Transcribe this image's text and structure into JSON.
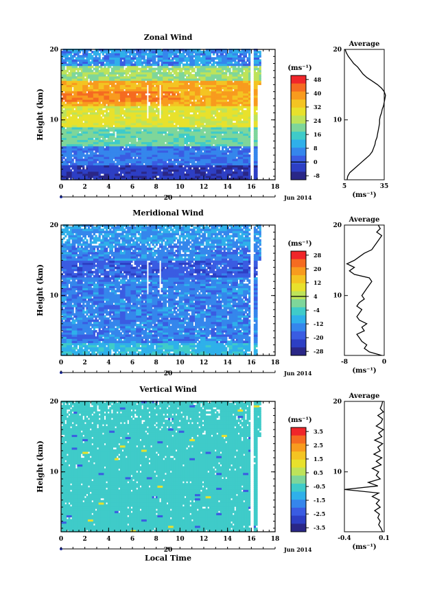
{
  "page": {
    "time_axis_label": "Local Time",
    "date_day": "20",
    "date_month": "Jun 2014"
  },
  "chart_data": [
    {
      "type": "heatmap",
      "title": "Zonal Wind",
      "ylabel": "Height (km)",
      "xlim": [
        0,
        18
      ],
      "ylim": [
        1.5,
        20
      ],
      "x_ticks": [
        "0",
        "2",
        "4",
        "6",
        "8",
        "10",
        "12",
        "14",
        "16",
        "18"
      ],
      "y_ticks": [
        "10",
        "20"
      ],
      "colorbar": {
        "unit": "(ms⁻¹)",
        "labels": [
          "48",
          "40",
          "32",
          "24",
          "16",
          "8",
          "0",
          "-8"
        ],
        "colors": [
          "#F0262A",
          "#F56B21",
          "#F89B1E",
          "#F4C422",
          "#E8E12C",
          "#BEE35A",
          "#7ED69A",
          "#3FCBC9",
          "#2FB0EA",
          "#3586EC",
          "#3A5CE2",
          "#2D3FC4",
          "#2A2787"
        ],
        "zero_contour": true
      },
      "profile": {
        "title": "Average",
        "xlabel": "(ms⁻¹)",
        "x_ticks": [
          "5",
          "35"
        ],
        "y_ticks": [
          "10",
          "20"
        ],
        "xlim": [
          5,
          35
        ],
        "height": [
          1.5,
          2,
          2.5,
          3,
          3.5,
          4,
          4.5,
          5,
          5.5,
          6,
          6.5,
          7,
          7.5,
          8,
          8.5,
          9,
          9.5,
          10,
          10.5,
          11,
          11.5,
          12,
          12.5,
          13,
          13.5,
          14,
          14.5,
          15,
          15.5,
          16,
          16.5,
          17,
          17.5,
          18,
          18.5,
          19,
          19.5,
          20
        ],
        "values": [
          7,
          7.5,
          9,
          12,
          15,
          18,
          21,
          24,
          26,
          27,
          28,
          28.5,
          29.5,
          30,
          30.5,
          31,
          31.5,
          31.5,
          32,
          33,
          33.5,
          34.5,
          35,
          35.5,
          36,
          35,
          33,
          30,
          26,
          22,
          19,
          17,
          15,
          12,
          10,
          8,
          6.5,
          5.5
        ]
      },
      "series_description": "Eastward wind strongest (32-48) near 12-15 km, weak/negative near surface and above 18 km"
    },
    {
      "type": "heatmap",
      "title": "Meridional Wind",
      "ylabel": "Height (km)",
      "xlim": [
        0,
        18
      ],
      "ylim": [
        1.5,
        20
      ],
      "x_ticks": [
        "0",
        "2",
        "4",
        "6",
        "8",
        "10",
        "12",
        "14",
        "16",
        "18"
      ],
      "y_ticks": [
        "10",
        "20"
      ],
      "colorbar": {
        "unit": "(ms⁻¹)",
        "labels": [
          "28",
          "20",
          "12",
          "4",
          "-4",
          "-12",
          "-20",
          "-28"
        ],
        "colors": [
          "#F0262A",
          "#F56B21",
          "#F89B1E",
          "#F4C422",
          "#E8E12C",
          "#BEE35A",
          "#7ED69A",
          "#3FCBC9",
          "#2FB0EA",
          "#3586EC",
          "#3A5CE2",
          "#2D3FC4",
          "#2A2787"
        ],
        "zero_contour": true
      },
      "profile": {
        "title": "Average",
        "xlabel": "(ms⁻¹)",
        "x_ticks": [
          "-8",
          "0"
        ],
        "y_ticks": [
          "10",
          "20"
        ],
        "xlim": [
          -8,
          0
        ],
        "height": [
          1.5,
          2,
          2.5,
          3,
          3.5,
          4,
          4.5,
          5,
          5.5,
          6,
          6.5,
          7,
          7.5,
          8,
          8.5,
          9,
          9.5,
          10,
          10.5,
          11,
          11.5,
          12,
          12.5,
          13,
          13.5,
          14,
          14.5,
          15,
          15.5,
          16,
          16.5,
          17,
          17.5,
          18,
          18.5,
          19,
          19.5,
          20
        ],
        "values": [
          -0.5,
          -3,
          -4,
          -3.5,
          -4.5,
          -5,
          -5.5,
          -4,
          -4.5,
          -3.5,
          -5,
          -5.5,
          -5,
          -4.5,
          -5.5,
          -5,
          -4,
          -4.5,
          -4,
          -3.5,
          -3,
          -2.5,
          -3,
          -6,
          -7,
          -6,
          -7.5,
          -6,
          -5,
          -4,
          -2.5,
          -2,
          -1.5,
          -1,
          -0.5,
          -1.5,
          -0.8,
          -1.2
        ]
      }
    },
    {
      "type": "heatmap",
      "title": "Vertical Wind",
      "ylabel": "Height (km)",
      "xlabel": "Local Time",
      "xlim": [
        0,
        18
      ],
      "ylim": [
        1.5,
        20
      ],
      "x_ticks": [
        "0",
        "2",
        "4",
        "6",
        "8",
        "10",
        "12",
        "14",
        "16",
        "18"
      ],
      "y_ticks": [
        "10",
        "20"
      ],
      "colorbar": {
        "unit": "(ms⁻¹)",
        "labels": [
          "3.5",
          "2.5",
          "1.5",
          "0.5",
          "-0.5",
          "-1.5",
          "-2.5",
          "-3.5"
        ],
        "colors": [
          "#F0262A",
          "#F56B21",
          "#F89B1E",
          "#F4C422",
          "#E8E12C",
          "#BEE35A",
          "#7ED69A",
          "#3FCBC9",
          "#2FB0EA",
          "#3586EC",
          "#3A5CE2",
          "#2D3FC4",
          "#2A2787"
        ],
        "zero_contour": false
      },
      "profile": {
        "title": "Average",
        "xlabel": "(ms⁻¹)",
        "x_ticks": [
          "-0.4",
          "0.1"
        ],
        "y_ticks": [
          "10",
          "20"
        ],
        "xlim": [
          -0.4,
          0.1
        ],
        "height": [
          1.5,
          2,
          2.5,
          3,
          3.5,
          4,
          4.5,
          5,
          5.5,
          6,
          6.5,
          7,
          7.5,
          8,
          8.5,
          9,
          9.5,
          10,
          10.5,
          11,
          11.5,
          12,
          12.5,
          13,
          13.5,
          14,
          14.5,
          15,
          15.5,
          16,
          16.5,
          17,
          17.5,
          18,
          18.5,
          19,
          19.5,
          20
        ],
        "values": [
          0.08,
          0.06,
          0.03,
          0.05,
          0.02,
          0.04,
          -0.02,
          0.05,
          0.0,
          0.04,
          -0.05,
          0.03,
          -0.4,
          0.02,
          -0.1,
          0.05,
          0.0,
          0.03,
          -0.05,
          0.06,
          0.0,
          0.07,
          -0.03,
          0.05,
          0.02,
          0.08,
          -0.02,
          0.07,
          0.03,
          0.09,
          0.0,
          0.06,
          0.08,
          0.02,
          0.09,
          0.05,
          0.07,
          0.08
        ]
      }
    }
  ]
}
